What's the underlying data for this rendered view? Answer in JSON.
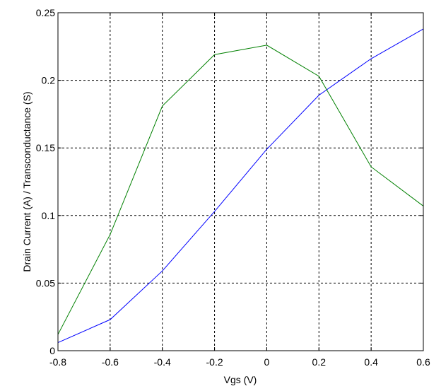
{
  "chart_data": {
    "type": "line",
    "title": "",
    "xlabel": "Vgs (V)",
    "ylabel": "Drain Current  (A)  / Transconductance (S)",
    "xlim": [
      -0.8,
      0.6
    ],
    "ylim": [
      0,
      0.25
    ],
    "xticks": [
      -0.8,
      -0.6,
      -0.4,
      -0.2,
      0,
      0.2,
      0.4,
      0.6
    ],
    "xtick_labels": [
      "-0.8",
      "-0.6",
      "-0.4",
      "-0.2",
      "0",
      "0.2",
      "0.4",
      "0.6"
    ],
    "yticks": [
      0,
      0.05,
      0.1,
      0.15,
      0.2,
      0.25
    ],
    "ytick_labels": [
      "0",
      "0.05",
      "0.1",
      "0.15",
      "0.2",
      "0.25"
    ],
    "grid": true,
    "legend": false,
    "x": [
      -0.8,
      -0.6,
      -0.4,
      -0.2,
      0,
      0.2,
      0.4,
      0.6
    ],
    "series": [
      {
        "color": "#0000ff",
        "values": [
          0.006,
          0.023,
          0.059,
          0.103,
          0.149,
          0.189,
          0.216,
          0.238
        ]
      },
      {
        "color": "#008000",
        "values": [
          0.012,
          0.086,
          0.181,
          0.219,
          0.226,
          0.203,
          0.136,
          0.107
        ]
      }
    ]
  }
}
